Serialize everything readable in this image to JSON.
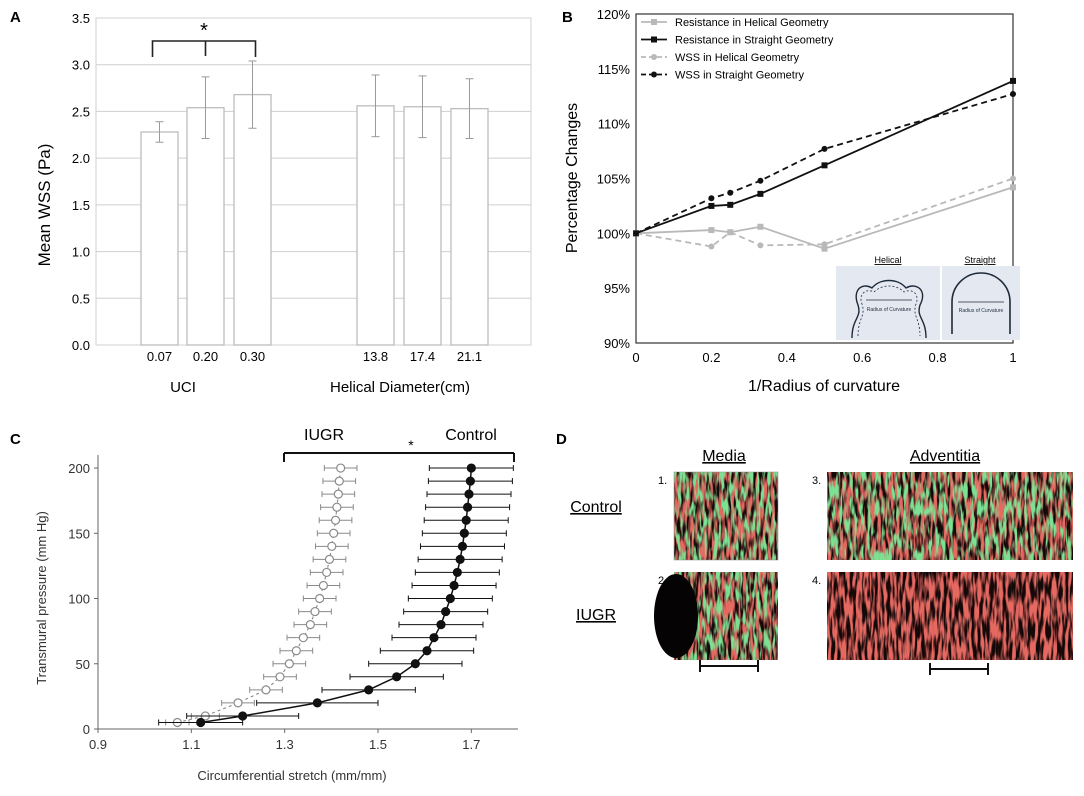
{
  "colors": {
    "bar_edge": "#bdbdbd",
    "err": "#9a9a9a",
    "axis": "#555555",
    "dark": "#111111",
    "light": "#b9b9b9",
    "panel_c_text": "#333333",
    "inset_bg": "#e4e9f1",
    "micro_red": "#c8231e",
    "micro_green": "#35c24a",
    "micro_bg": "#150808"
  },
  "chart_data": [
    {
      "panel": "A",
      "type": "bar",
      "ylabel": "Mean WSS (Pa)",
      "ylim": [
        0,
        3.5
      ],
      "yticks": [
        "0.0",
        "0.5",
        "1.0",
        "1.5",
        "2.0",
        "2.5",
        "3.0",
        "3.5"
      ],
      "groups": [
        {
          "label": "UCI",
          "categories": [
            "0.07",
            "0.20",
            "0.30"
          ],
          "values": [
            2.28,
            2.54,
            2.68
          ],
          "errors": [
            0.11,
            0.33,
            0.36
          ]
        },
        {
          "label": "Helical Diameter(cm)",
          "categories": [
            "13.8",
            "17.4",
            "21.1"
          ],
          "values": [
            2.56,
            2.55,
            2.53
          ],
          "errors": [
            0.33,
            0.33,
            0.32
          ]
        }
      ],
      "significance": {
        "marker": "*",
        "between": [
          "0.07",
          "0.30"
        ]
      }
    },
    {
      "panel": "B",
      "type": "line",
      "xlabel": "1/Radius of curvature",
      "ylabel": "Percentage Changes",
      "xlim": [
        0,
        1
      ],
      "ylim": [
        90,
        120
      ],
      "xticks": [
        "0",
        "0.2",
        "0.4",
        "0.6",
        "0.8",
        "1"
      ],
      "yticks": [
        "90%",
        "95%",
        "100%",
        "105%",
        "110%",
        "115%",
        "120%"
      ],
      "x": [
        0,
        0.2,
        0.25,
        0.33,
        0.5,
        1
      ],
      "series": [
        {
          "name": "Resistance in Helical Geometry",
          "values": [
            100,
            100.3,
            100.1,
            100.6,
            98.6,
            104.2
          ]
        },
        {
          "name": "Resistance in Straight Geometry",
          "values": [
            100,
            102.5,
            102.6,
            103.6,
            106.2,
            113.9
          ]
        },
        {
          "name": "WSS in Helical Geometry",
          "values": [
            100,
            98.8,
            100.1,
            98.9,
            99.0,
            105.0
          ]
        },
        {
          "name": "WSS in Straight Geometry",
          "values": [
            100,
            103.2,
            103.7,
            104.8,
            107.7,
            112.7
          ]
        }
      ],
      "inset": {
        "helical_title": "Helical",
        "straight_title": "Straight",
        "radius_label": "Radius of Curvature"
      }
    },
    {
      "panel": "C",
      "type": "scatter",
      "xlabel": "Circumferential stretch (mm/mm)",
      "ylabel": "Transmural pressure (mm Hg)",
      "xlim": [
        0.9,
        1.8
      ],
      "ylim": [
        0,
        210
      ],
      "xticks": [
        "0.9",
        "1.1",
        "1.3",
        "1.5",
        "1.7"
      ],
      "yticks": [
        "0",
        "50",
        "100",
        "150",
        "200"
      ],
      "pressures": [
        5,
        10,
        20,
        30,
        40,
        50,
        60,
        70,
        80,
        90,
        100,
        110,
        120,
        130,
        140,
        150,
        160,
        170,
        180,
        190,
        200
      ],
      "series": [
        {
          "name": "IUGR",
          "style": "open",
          "x": [
            1.07,
            1.13,
            1.2,
            1.26,
            1.29,
            1.31,
            1.325,
            1.34,
            1.355,
            1.365,
            1.375,
            1.383,
            1.39,
            1.396,
            1.401,
            1.405,
            1.409,
            1.412,
            1.415,
            1.417,
            1.42
          ],
          "error": [
            0.025,
            0.03,
            0.035,
            0.035,
            0.035,
            0.035,
            0.035,
            0.035,
            0.035,
            0.035,
            0.035,
            0.035,
            0.035,
            0.035,
            0.035,
            0.035,
            0.035,
            0.035,
            0.035,
            0.035,
            0.035
          ]
        },
        {
          "name": "Control",
          "style": "filled",
          "x": [
            1.12,
            1.21,
            1.37,
            1.48,
            1.54,
            1.58,
            1.605,
            1.62,
            1.635,
            1.645,
            1.655,
            1.663,
            1.67,
            1.676,
            1.681,
            1.685,
            1.689,
            1.692,
            1.695,
            1.698,
            1.7
          ],
          "error": [
            0.09,
            0.12,
            0.13,
            0.1,
            0.1,
            0.1,
            0.1,
            0.09,
            0.09,
            0.09,
            0.09,
            0.09,
            0.09,
            0.09,
            0.09,
            0.09,
            0.09,
            0.09,
            0.09,
            0.09,
            0.09
          ]
        }
      ],
      "significance": "*"
    },
    {
      "panel": "D",
      "type": "image-grid",
      "column_titles": [
        "Media",
        "Adventitia"
      ],
      "row_titles": [
        "Control",
        "IUGR"
      ],
      "image_numbers": [
        "1.",
        "2.",
        "3.",
        "4."
      ]
    }
  ],
  "panel_labels": [
    "A",
    "B",
    "C",
    "D"
  ]
}
